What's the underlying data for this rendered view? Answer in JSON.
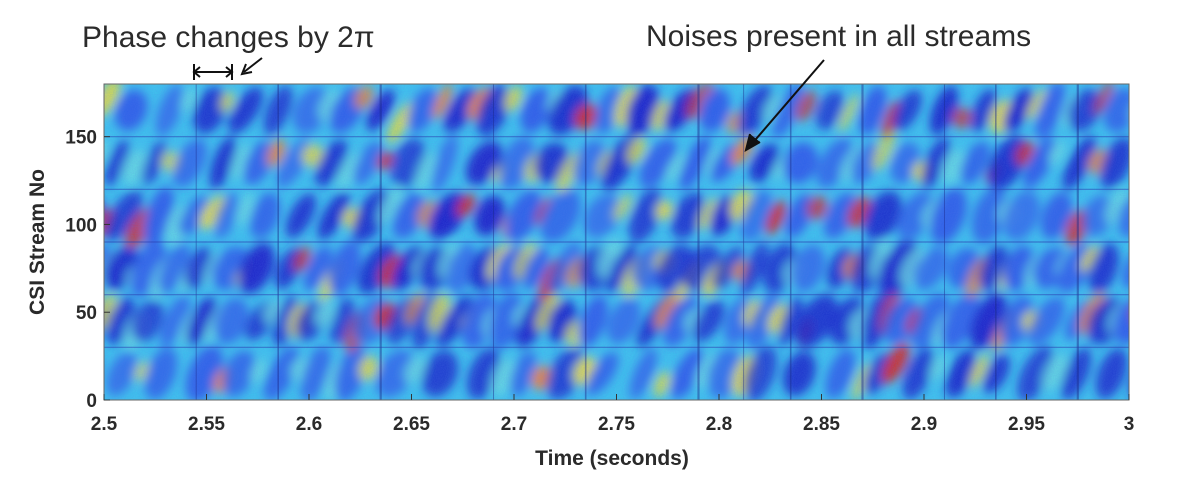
{
  "chart_data": {
    "type": "heatmap",
    "xlabel": "Time (seconds)",
    "ylabel": "CSI Stream No",
    "xlim": [
      2.5,
      3.0
    ],
    "ylim": [
      0,
      180
    ],
    "x_ticks": [
      "2.5",
      "2.55",
      "2.6",
      "2.65",
      "2.7",
      "2.75",
      "2.8",
      "2.85",
      "2.9",
      "2.95",
      "3"
    ],
    "y_ticks": [
      "0",
      "50",
      "100",
      "150"
    ],
    "colormap": [
      "#1a22c8",
      "#2f5fe8",
      "#38c8ee",
      "#6ee6e0",
      "#e8e43a",
      "#f08a2a",
      "#d92a1a"
    ],
    "stream_group_boundaries": [
      30,
      60,
      90,
      120,
      150
    ],
    "annotations": [
      {
        "text": "Phase changes by 2π",
        "marks": "double-headed arrow spanning one phase period near t ≈ 2.54–2.56 s, top of plot"
      },
      {
        "text": "Noises present in all streams",
        "points_to": {
          "time": 2.81,
          "stream": 150
        }
      }
    ]
  }
}
